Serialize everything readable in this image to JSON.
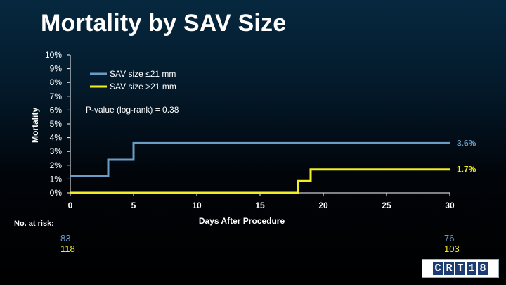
{
  "title": "Mortality by SAV Size",
  "colors": {
    "series_small": "#6b9dc4",
    "series_large": "#f2ee22"
  },
  "chart_data": {
    "type": "line",
    "step": true,
    "title": "Mortality by SAV Size",
    "xlabel": "Days After Procedure",
    "ylabel": "Mortality",
    "xlim": [
      0,
      30
    ],
    "ylim": [
      0,
      10
    ],
    "x_ticks": [
      "0",
      "5",
      "10",
      "15",
      "20",
      "25",
      "30"
    ],
    "y_ticks": [
      "0%",
      "1%",
      "2%",
      "3%",
      "4%",
      "5%",
      "6%",
      "7%",
      "8%",
      "9%",
      "10%"
    ],
    "annotation": "P-value (log-rank) = 0.38",
    "legend_position": "top-left",
    "series": [
      {
        "name": "SAV size ≤21 mm",
        "color": "#6b9dc4",
        "x": [
          0,
          3,
          3,
          5,
          5,
          30
        ],
        "y": [
          1.2,
          1.2,
          2.4,
          2.4,
          3.6,
          3.6
        ],
        "end_label": "3.6%"
      },
      {
        "name": "SAV size >21 mm",
        "color": "#f2ee22",
        "x": [
          0,
          18,
          18,
          19,
          19,
          30
        ],
        "y": [
          0,
          0,
          0.85,
          0.85,
          1.7,
          1.7
        ],
        "end_label": "1.7%"
      }
    ]
  },
  "risk_table": {
    "label": "No. at risk:",
    "rows": [
      {
        "color": "#6b9dc4",
        "start": "83",
        "end": "76"
      },
      {
        "color": "#f2ee22",
        "start": "118",
        "end": "103"
      }
    ]
  },
  "logo": {
    "text": "CRT18"
  }
}
